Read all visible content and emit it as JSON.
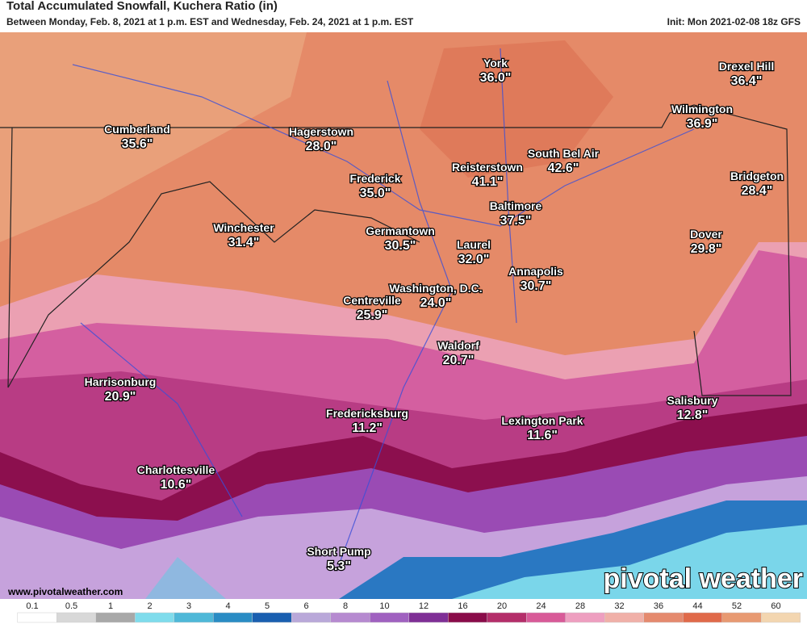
{
  "header": {
    "title": "Total Accumulated Snowfall, Kuchera Ratio (in)",
    "subtitle": "Between Monday, Feb. 8, 2021 at 1 p.m. EST and Wednesday, Feb. 24, 2021 at 1 p.m. EST",
    "init": "Init: Mon 2021-02-08 18z GFS"
  },
  "cities": [
    {
      "name": "York",
      "value": "36.0\""
    },
    {
      "name": "Drexel Hill",
      "value": "36.4\""
    },
    {
      "name": "Wilmington",
      "value": "36.9\""
    },
    {
      "name": "Cumberland",
      "value": "35.6\""
    },
    {
      "name": "Hagerstown",
      "value": "28.0\""
    },
    {
      "name": "South Bel Air",
      "value": "42.6\""
    },
    {
      "name": "Reisterstown",
      "value": "41.1\""
    },
    {
      "name": "Frederick",
      "value": "35.0\""
    },
    {
      "name": "Bridgeton",
      "value": "28.4\""
    },
    {
      "name": "Baltimore",
      "value": "37.5\""
    },
    {
      "name": "Winchester",
      "value": "31.4\""
    },
    {
      "name": "Germantown",
      "value": "30.5\""
    },
    {
      "name": "Dover",
      "value": "29.8\""
    },
    {
      "name": "Laurel",
      "value": "32.0\""
    },
    {
      "name": "Annapolis",
      "value": "30.7\""
    },
    {
      "name": "Washington, D.C.",
      "value": "24.0\""
    },
    {
      "name": "Centreville",
      "value": "25.9\""
    },
    {
      "name": "Waldorf",
      "value": "20.7\""
    },
    {
      "name": "Harrisonburg",
      "value": "20.9\""
    },
    {
      "name": "Salisbury",
      "value": "12.8\""
    },
    {
      "name": "Fredericksburg",
      "value": "11.2\""
    },
    {
      "name": "Lexington Park",
      "value": "11.6\""
    },
    {
      "name": "Charlottesville",
      "value": "10.6\""
    },
    {
      "name": "Short Pump",
      "value": "5.3\""
    }
  ],
  "website": "www.pivotalweather.com",
  "watermark": "pivotal weather",
  "legend": {
    "values": [
      0.1,
      0.5,
      1,
      2,
      3,
      4,
      5,
      6,
      8,
      10,
      12,
      16,
      20,
      24,
      28,
      32,
      36,
      44,
      52,
      60
    ],
    "colors": [
      "#ffffff",
      "#d8d8d8",
      "#a8a8a8",
      "#7fdcec",
      "#4fb8d8",
      "#2a8cc4",
      "#1a5fb0",
      "#b9a8d9",
      "#b68ad0",
      "#a061c0",
      "#7f2f96",
      "#8a0c4a",
      "#b42e6a",
      "#d85a98",
      "#ee9fc0",
      "#f0b0a8",
      "#e58a6e",
      "#e06a4a",
      "#e89a72",
      "#f3d6b0"
    ]
  }
}
